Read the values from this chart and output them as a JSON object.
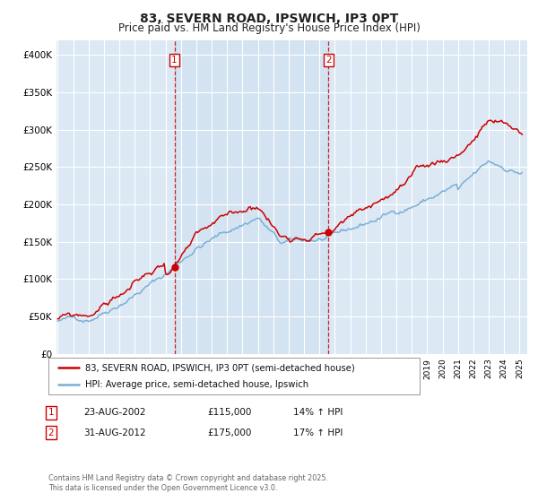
{
  "title": "83, SEVERN ROAD, IPSWICH, IP3 0PT",
  "subtitle": "Price paid vs. HM Land Registry's House Price Index (HPI)",
  "title_fontsize": 10,
  "subtitle_fontsize": 8.5,
  "bg_color": "#ffffff",
  "plot_bg_color": "#dce9f5",
  "grid_color": "#ffffff",
  "legend_label_red": "83, SEVERN ROAD, IPSWICH, IP3 0PT (semi-detached house)",
  "legend_label_blue": "HPI: Average price, semi-detached house, Ipswich",
  "red_color": "#cc0000",
  "blue_color": "#7bafd4",
  "annotation1_date": "23-AUG-2002",
  "annotation1_price": "£115,000",
  "annotation1_hpi": "14% ↑ HPI",
  "annotation2_date": "31-AUG-2012",
  "annotation2_price": "£175,000",
  "annotation2_hpi": "17% ↑ HPI",
  "footer": "Contains HM Land Registry data © Crown copyright and database right 2025.\nThis data is licensed under the Open Government Licence v3.0.",
  "ylim": [
    0,
    420000
  ],
  "yticks": [
    0,
    50000,
    100000,
    150000,
    200000,
    250000,
    300000,
    350000,
    400000
  ],
  "ytick_labels": [
    "£0",
    "£50K",
    "£100K",
    "£150K",
    "£200K",
    "£250K",
    "£300K",
    "£350K",
    "£400K"
  ]
}
